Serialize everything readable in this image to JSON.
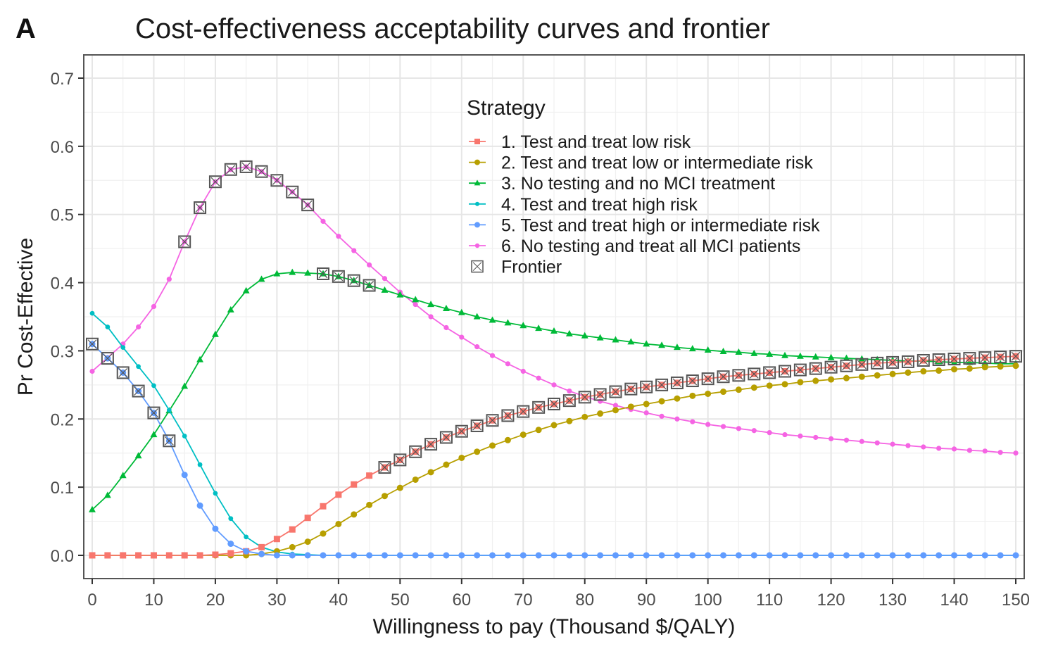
{
  "chart_data": {
    "type": "line",
    "panel_label": "A",
    "title": "Cost-effectiveness acceptability curves and frontier",
    "xlabel": "Willingness to pay (Thousand $/QALY)",
    "ylabel": "Pr Cost-Effective",
    "xlim": [
      0,
      150
    ],
    "ylim": [
      -0.035,
      0.725
    ],
    "xticks": [
      0,
      10,
      20,
      30,
      40,
      50,
      60,
      70,
      80,
      90,
      100,
      110,
      120,
      130,
      140,
      150
    ],
    "yticks": [
      0.0,
      0.1,
      0.2,
      0.3,
      0.4,
      0.5,
      0.6,
      0.7
    ],
    "ytick_labels": [
      "0.0",
      "0.1",
      "0.2",
      "0.3",
      "0.4",
      "0.5",
      "0.6",
      "0.7"
    ],
    "grid": true,
    "legend": {
      "title": "Strategy",
      "placement": "top-center-inside",
      "frontier_label": "Frontier"
    },
    "x": [
      0,
      2.5,
      5,
      7.5,
      10,
      12.5,
      15,
      17.5,
      20,
      22.5,
      25,
      27.5,
      30,
      32.5,
      35,
      37.5,
      40,
      42.5,
      45,
      47.5,
      50,
      52.5,
      55,
      57.5,
      60,
      62.5,
      65,
      67.5,
      70,
      72.5,
      75,
      77.5,
      80,
      82.5,
      85,
      87.5,
      90,
      92.5,
      95,
      97.5,
      100,
      102.5,
      105,
      107.5,
      110,
      112.5,
      115,
      117.5,
      120,
      122.5,
      125,
      127.5,
      130,
      132.5,
      135,
      137.5,
      140,
      142.5,
      145,
      147.5,
      150
    ],
    "series": [
      {
        "id": "s1",
        "name": "1. Test and treat low risk",
        "color": "#F8766D",
        "marker": "square",
        "values": [
          0,
          0,
          0,
          0,
          0,
          0,
          0,
          0,
          0.001,
          0.003,
          0.006,
          0.012,
          0.024,
          0.038,
          0.055,
          0.072,
          0.089,
          0.104,
          0.117,
          0.129,
          0.14,
          0.152,
          0.163,
          0.173,
          0.182,
          0.19,
          0.198,
          0.205,
          0.211,
          0.217,
          0.222,
          0.227,
          0.232,
          0.236,
          0.24,
          0.244,
          0.247,
          0.25,
          0.253,
          0.256,
          0.259,
          0.262,
          0.264,
          0.266,
          0.268,
          0.27,
          0.272,
          0.274,
          0.276,
          0.278,
          0.28,
          0.282,
          0.283,
          0.284,
          0.286,
          0.287,
          0.288,
          0.289,
          0.29,
          0.291,
          0.292
        ]
      },
      {
        "id": "s2",
        "name": "2. Test and treat low or intermediate risk",
        "color": "#B79F00",
        "marker": "circle",
        "values": [
          0,
          0,
          0,
          0,
          0,
          0,
          0,
          0,
          0,
          0,
          0,
          0.002,
          0.006,
          0.012,
          0.02,
          0.032,
          0.046,
          0.06,
          0.074,
          0.087,
          0.099,
          0.111,
          0.122,
          0.133,
          0.143,
          0.152,
          0.161,
          0.169,
          0.177,
          0.184,
          0.191,
          0.197,
          0.203,
          0.208,
          0.213,
          0.218,
          0.222,
          0.226,
          0.23,
          0.234,
          0.237,
          0.24,
          0.243,
          0.246,
          0.249,
          0.251,
          0.254,
          0.256,
          0.258,
          0.26,
          0.262,
          0.264,
          0.266,
          0.268,
          0.27,
          0.271,
          0.273,
          0.274,
          0.276,
          0.277,
          0.278
        ]
      },
      {
        "id": "s3",
        "name": "3. No testing and no MCI treatment",
        "color": "#00BA38",
        "marker": "triangle",
        "values": [
          0.067,
          0.088,
          0.117,
          0.146,
          0.177,
          0.212,
          0.248,
          0.287,
          0.324,
          0.36,
          0.388,
          0.405,
          0.413,
          0.415,
          0.414,
          0.413,
          0.409,
          0.403,
          0.396,
          0.389,
          0.382,
          0.375,
          0.368,
          0.362,
          0.356,
          0.35,
          0.345,
          0.341,
          0.337,
          0.333,
          0.329,
          0.325,
          0.322,
          0.319,
          0.316,
          0.313,
          0.31,
          0.308,
          0.305,
          0.303,
          0.301,
          0.299,
          0.298,
          0.296,
          0.295,
          0.293,
          0.292,
          0.291,
          0.29,
          0.289,
          0.288,
          0.287,
          0.286,
          0.285,
          0.285,
          0.284,
          0.283,
          0.283,
          0.282,
          0.281,
          0.281
        ]
      },
      {
        "id": "s4",
        "name": "4. Test and treat high risk",
        "color": "#00BFC4",
        "marker": "plus",
        "values": [
          0.355,
          0.335,
          0.305,
          0.277,
          0.249,
          0.213,
          0.175,
          0.133,
          0.091,
          0.054,
          0.027,
          0.012,
          0.005,
          0.002,
          0.001,
          0,
          0,
          0,
          0,
          0,
          0,
          0,
          0,
          0,
          0,
          0,
          0,
          0,
          0,
          0,
          0,
          0,
          0,
          0,
          0,
          0,
          0,
          0,
          0,
          0,
          0,
          0,
          0,
          0,
          0,
          0,
          0,
          0,
          0,
          0,
          0,
          0,
          0,
          0,
          0,
          0,
          0,
          0,
          0,
          0,
          0
        ]
      },
      {
        "id": "s5",
        "name": "5. Test and treat high or intermediate risk",
        "color": "#619CFF",
        "marker": "circle",
        "values": [
          0.31,
          0.289,
          0.268,
          0.241,
          0.209,
          0.168,
          0.118,
          0.073,
          0.039,
          0.017,
          0.006,
          0.002,
          0,
          0,
          0,
          0,
          0,
          0,
          0,
          0,
          0,
          0,
          0,
          0,
          0,
          0,
          0,
          0,
          0,
          0,
          0,
          0,
          0,
          0,
          0,
          0,
          0,
          0,
          0,
          0,
          0,
          0,
          0,
          0,
          0,
          0,
          0,
          0,
          0,
          0,
          0,
          0,
          0,
          0,
          0,
          0,
          0,
          0,
          0,
          0,
          0
        ]
      },
      {
        "id": "s6",
        "name": "6. No testing and treat all MCI patients",
        "color": "#F564E3",
        "marker": "dot",
        "values": [
          0.27,
          0.29,
          0.31,
          0.335,
          0.365,
          0.405,
          0.46,
          0.51,
          0.548,
          0.566,
          0.57,
          0.563,
          0.55,
          0.533,
          0.514,
          0.49,
          0.468,
          0.447,
          0.426,
          0.406,
          0.386,
          0.368,
          0.35,
          0.334,
          0.32,
          0.306,
          0.293,
          0.281,
          0.27,
          0.26,
          0.25,
          0.241,
          0.233,
          0.226,
          0.22,
          0.214,
          0.209,
          0.204,
          0.2,
          0.196,
          0.192,
          0.189,
          0.186,
          0.183,
          0.18,
          0.177,
          0.175,
          0.173,
          0.171,
          0.169,
          0.167,
          0.165,
          0.163,
          0.161,
          0.159,
          0.157,
          0.156,
          0.154,
          0.153,
          0.151,
          0.15
        ]
      }
    ],
    "frontier": [
      {
        "series": "s5",
        "from_x": 0,
        "to_x": 12.5
      },
      {
        "series": "s6",
        "from_x": 15,
        "to_x": 35
      },
      {
        "series": "s3",
        "from_x": 37.5,
        "to_x": 45
      },
      {
        "series": "s1",
        "from_x": 47.5,
        "to_x": 150
      }
    ]
  }
}
